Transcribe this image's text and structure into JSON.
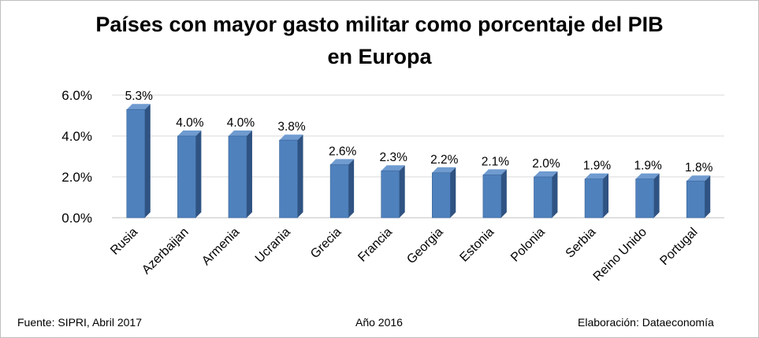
{
  "title_line1": "Países con mayor gasto militar como porcentaje del PIB",
  "title_line2": "en Europa",
  "footer": {
    "source": "Fuente: SIPRI, Abril 2017",
    "year": "Año 2016",
    "credit": "Elaboración: Dataeconomía"
  },
  "colors": {
    "bar_front": "#4f81bd",
    "bar_side": "#2f5382",
    "bar_top": "#6f9bd0",
    "grid": "#d9d9d9"
  },
  "chart_data": {
    "type": "bar",
    "title": "Países con mayor gasto militar como porcentaje del PIB en Europa",
    "xlabel": "",
    "ylabel": "",
    "ylim": [
      0,
      6.0
    ],
    "yticks": [
      "0.0%",
      "2.0%",
      "4.0%",
      "6.0%"
    ],
    "ytick_values": [
      0,
      2,
      4,
      6
    ],
    "grid": true,
    "categories": [
      "Rusia",
      "Azerbaijan",
      "Armenia",
      "Ucrania",
      "Grecia",
      "Francia",
      "Georgia",
      "Estonia",
      "Polonia",
      "Serbia",
      "Reino Unido",
      "Portugal"
    ],
    "values": [
      5.3,
      4.0,
      4.0,
      3.8,
      2.6,
      2.3,
      2.2,
      2.1,
      2.0,
      1.9,
      1.9,
      1.8
    ],
    "labels": [
      "5.3%",
      "4.0%",
      "4.0%",
      "3.8%",
      "2.6%",
      "2.3%",
      "2.2%",
      "2.1%",
      "2.0%",
      "1.9%",
      "1.9%",
      "1.8%"
    ]
  }
}
